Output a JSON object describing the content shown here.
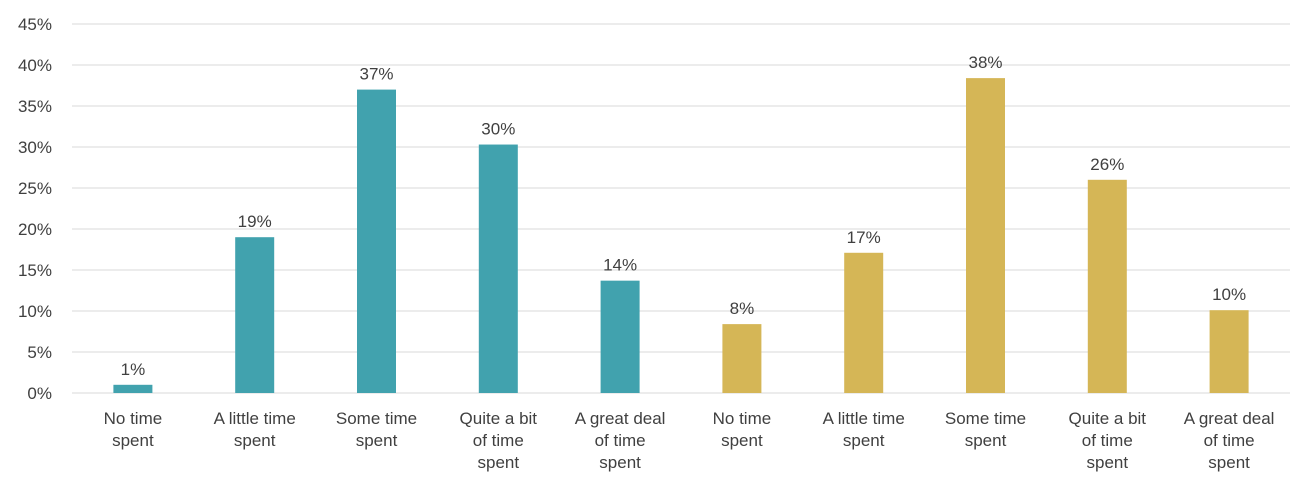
{
  "chart_data": {
    "type": "bar",
    "categories": [
      "No time spent",
      "A little time spent",
      "Some time spent",
      "Quite a bit of time spent",
      "A great deal of time spent",
      "No time spent",
      "A little time spent",
      "Some time spent",
      "Quite a bit of time spent",
      "A great deal of time spent"
    ],
    "category_label_lines": [
      [
        "No time",
        "spent"
      ],
      [
        "A little time",
        "spent"
      ],
      [
        "Some time",
        "spent"
      ],
      [
        "Quite a bit",
        "of time",
        "spent"
      ],
      [
        "A great deal",
        "of time",
        "spent"
      ],
      [
        "No time",
        "spent"
      ],
      [
        "A little time",
        "spent"
      ],
      [
        "Some time",
        "spent"
      ],
      [
        "Quite a bit",
        "of time",
        "spent"
      ],
      [
        "A great deal",
        "of time",
        "spent"
      ]
    ],
    "values": [
      1,
      19,
      37,
      30.3,
      13.7,
      8.4,
      17.1,
      38.4,
      26,
      10.1
    ],
    "data_labels": [
      "1%",
      "19%",
      "37%",
      "30%",
      "14%",
      "8%",
      "17%",
      "38%",
      "26%",
      "10%"
    ],
    "bar_colors": [
      "#41a2ae",
      "#41a2ae",
      "#41a2ae",
      "#41a2ae",
      "#41a2ae",
      "#d5b656",
      "#d5b656",
      "#d5b656",
      "#d5b656",
      "#d5b656"
    ],
    "ylim": [
      0,
      45
    ],
    "yticks": [
      "0%",
      "5%",
      "10%",
      "15%",
      "20%",
      "25%",
      "30%",
      "35%",
      "40%",
      "45%"
    ],
    "grid": true,
    "gridline_color": "#d9d9d9",
    "title": "",
    "xlabel": "",
    "ylabel": ""
  }
}
